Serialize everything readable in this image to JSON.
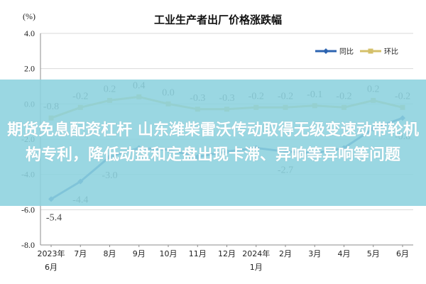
{
  "chart_data": {
    "type": "line",
    "title": "工业生产者出厂价格涨跌幅",
    "ylabel": "(%)",
    "ylim": [
      -8.0,
      4.0
    ],
    "yticks": [
      "4.0",
      "2.0",
      "0.0",
      "-2.0",
      "-4.0",
      "-6.0",
      "-8.0"
    ],
    "categories": [
      [
        "2023年",
        "6月"
      ],
      [
        "7月"
      ],
      [
        "8月"
      ],
      [
        "9月"
      ],
      [
        "10月"
      ],
      [
        "11月"
      ],
      [
        "12月"
      ],
      [
        "2024年",
        "1月"
      ],
      [
        "2月"
      ],
      [
        "3月"
      ],
      [
        "4月"
      ],
      [
        "5月"
      ],
      [
        "6月"
      ]
    ],
    "grid": true,
    "legend_position": "top-right",
    "series": [
      {
        "name": "同比",
        "color": "#2c64b0",
        "values": [
          -5.4,
          -4.4,
          -3.0,
          -2.5,
          -2.6,
          -3.0,
          -2.7,
          -2.5,
          -2.7,
          -2.8,
          -2.5,
          -1.4,
          -0.8
        ],
        "labels": [
          "-5.4",
          "-4.4",
          "-3.0",
          "",
          "",
          "",
          "",
          "",
          "-2.7",
          "",
          "",
          "",
          "-0.8"
        ]
      },
      {
        "name": "环比",
        "color": "#d4c06a",
        "values": [
          -0.8,
          -0.2,
          0.2,
          0.4,
          0.0,
          -0.3,
          -0.3,
          -0.2,
          -0.2,
          -0.1,
          -0.2,
          0.2,
          -0.2
        ],
        "labels": [
          "-0.8",
          "-0.2",
          "0.2",
          "0.4",
          "0.0",
          "-0.3",
          "-0.3",
          "-0.2",
          "-0.2",
          "-0.1",
          "-0.2",
          "0.2",
          "-0.2"
        ]
      }
    ]
  },
  "overlay": {
    "headline": "期货免息配资杠杆 山东潍柴雷沃传动取得无级变速动带轮机构专利，降低动盘和定盘出现卡滞、异响等异响等问题"
  }
}
